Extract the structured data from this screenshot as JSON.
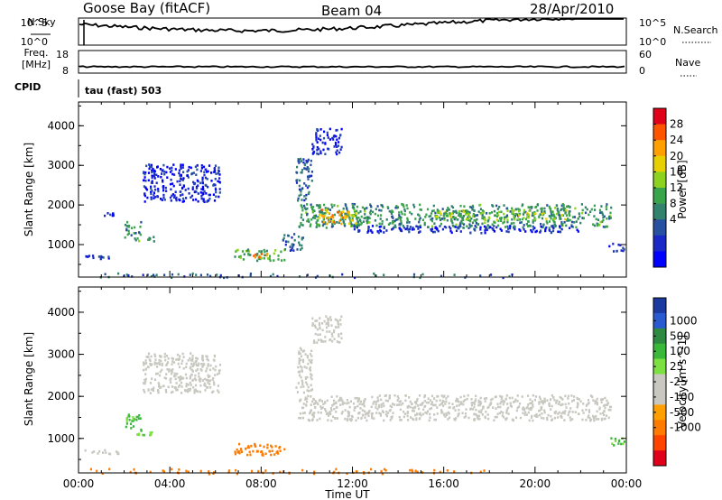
{
  "header": {
    "station": "Goose Bay (fitACF)",
    "beam": "Beam 04",
    "date": "28/Apr/2010"
  },
  "panels": {
    "noise": {
      "left_label": "N.Sky",
      "right_label": "N.Search",
      "left_ticks": [
        "10^5",
        "10^0"
      ],
      "right_ticks": [
        "10^5",
        "10^0"
      ]
    },
    "freq": {
      "left_label_1": "Freq.",
      "left_label_2": "[MHz]",
      "right_label": "Nave",
      "left_ticks": [
        "18",
        "8"
      ],
      "right_ticks": [
        "60",
        "0"
      ]
    },
    "cpid": {
      "label": "CPID",
      "value": "tau (fast) 503"
    }
  },
  "chart_data": [
    {
      "type": "heatmap",
      "title": "",
      "ylabel": "Slant Range [km]",
      "xlabel": "Time UT",
      "x_ticks": [
        "00:00",
        "04:00",
        "08:00",
        "12:00",
        "16:00",
        "20:00",
        "00:00"
      ],
      "y_ticks": [
        "1000",
        "2000",
        "3000",
        "4000"
      ],
      "xlim_hours": [
        0,
        24
      ],
      "ylim_km": [
        180,
        4600
      ],
      "colorbar": {
        "label": "Power [dB]",
        "ticks": [
          "28",
          "24",
          "20",
          "16",
          "12",
          "8",
          "4"
        ],
        "colors": [
          "#e0001a",
          "#ff5500",
          "#ffa000",
          "#e6d000",
          "#8dd21e",
          "#3aa44a",
          "#32826e",
          "#2850a0",
          "#1a28c8",
          "#0000ff"
        ]
      },
      "regions": [
        {
          "t0": 0.2,
          "t1": 1.8,
          "r0": 650,
          "r1": 760,
          "level": 8
        },
        {
          "t0": 1.1,
          "t1": 1.6,
          "r0": 1740,
          "r1": 1820,
          "level": 8
        },
        {
          "t0": 2.0,
          "t1": 2.7,
          "r0": 1200,
          "r1": 1600,
          "level": 14
        },
        {
          "t0": 2.3,
          "t1": 3.3,
          "r0": 1100,
          "r1": 1220,
          "level": 14
        },
        {
          "t0": 2.8,
          "t1": 6.2,
          "r0": 2100,
          "r1": 3050,
          "level": 6
        },
        {
          "t0": 6.8,
          "t1": 9.0,
          "r0": 620,
          "r1": 900,
          "level": 16
        },
        {
          "t0": 7.6,
          "t1": 8.4,
          "r0": 680,
          "r1": 800,
          "level": 26
        },
        {
          "t0": 8.9,
          "t1": 9.8,
          "r0": 850,
          "r1": 1300,
          "level": 10
        },
        {
          "t0": 9.5,
          "t1": 10.2,
          "r0": 2100,
          "r1": 3200,
          "level": 10
        },
        {
          "t0": 10.2,
          "t1": 11.5,
          "r0": 3300,
          "r1": 3950,
          "level": 6
        },
        {
          "t0": 9.6,
          "t1": 23.3,
          "r0": 1450,
          "r1": 2050,
          "level": 14
        },
        {
          "t0": 10.5,
          "t1": 12.2,
          "r0": 1550,
          "r1": 1920,
          "level": 24
        },
        {
          "t0": 12.0,
          "t1": 22.0,
          "r0": 1320,
          "r1": 1500,
          "level": 6
        },
        {
          "t0": 15.5,
          "t1": 21.5,
          "r0": 1650,
          "r1": 1900,
          "level": 18
        },
        {
          "t0": 23.2,
          "t1": 23.9,
          "r0": 850,
          "r1": 1050,
          "level": 8
        },
        {
          "t0": 0.5,
          "t1": 19.0,
          "r0": 180,
          "r1": 300,
          "level": 10
        }
      ]
    },
    {
      "type": "heatmap",
      "title": "",
      "ylabel": "Slant Range [km]",
      "xlabel": "Time UT",
      "x_ticks": [
        "00:00",
        "04:00",
        "08:00",
        "12:00",
        "16:00",
        "20:00",
        "00:00"
      ],
      "y_ticks": [
        "1000",
        "2000",
        "3000",
        "4000"
      ],
      "xlim_hours": [
        0,
        24
      ],
      "ylim_km": [
        180,
        4600
      ],
      "colorbar": {
        "label": "Velocity [m s^-1]",
        "ticks": [
          "1000",
          "500",
          "100",
          "25",
          "-25",
          "-100",
          "-500",
          "-1000"
        ],
        "colors": [
          "#1a3aa0",
          "#2a5ad0",
          "#2e8a40",
          "#3ab83a",
          "#7ce040",
          "#c8c8c0",
          "#c8c8c0",
          "#ffa000",
          "#ff7a00",
          "#ff4400",
          "#e0001a"
        ]
      },
      "regions": [
        {
          "t0": 0.2,
          "t1": 1.8,
          "r0": 650,
          "r1": 760,
          "level": 0
        },
        {
          "t0": 2.0,
          "t1": 2.7,
          "r0": 1200,
          "r1": 1600,
          "level": 80
        },
        {
          "t0": 2.3,
          "t1": 3.3,
          "r0": 1100,
          "r1": 1220,
          "level": 50
        },
        {
          "t0": 2.8,
          "t1": 6.2,
          "r0": 2100,
          "r1": 3050,
          "level": 0
        },
        {
          "t0": 6.8,
          "t1": 9.0,
          "r0": 620,
          "r1": 900,
          "level": -200
        },
        {
          "t0": 9.5,
          "t1": 10.2,
          "r0": 2100,
          "r1": 3200,
          "level": 0
        },
        {
          "t0": 10.2,
          "t1": 11.5,
          "r0": 3300,
          "r1": 3950,
          "level": 0
        },
        {
          "t0": 9.6,
          "t1": 23.3,
          "r0": 1450,
          "r1": 2050,
          "level": 0
        },
        {
          "t0": 23.2,
          "t1": 23.9,
          "r0": 850,
          "r1": 1050,
          "level": 80
        },
        {
          "t0": 0.5,
          "t1": 19.0,
          "r0": 180,
          "r1": 300,
          "level": -150
        }
      ]
    }
  ]
}
